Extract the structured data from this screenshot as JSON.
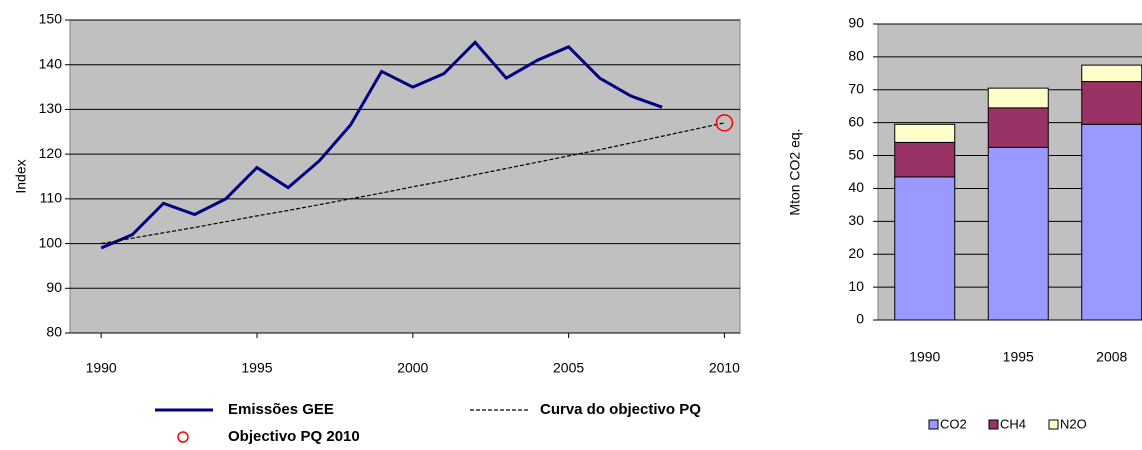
{
  "chart_data": [
    {
      "type": "line",
      "ylabel": "Index",
      "xlim": [
        1989,
        2010.5
      ],
      "xticks": [
        1990,
        1995,
        2000,
        2005,
        2010
      ],
      "ylim": [
        80,
        150
      ],
      "yticks": [
        80,
        90,
        100,
        110,
        120,
        130,
        140,
        150
      ],
      "grid": true,
      "background": "#c0c0c0",
      "legend": "bottom",
      "series": [
        {
          "name": "Emissões GEE",
          "color": "#000080",
          "style": "solid",
          "x": [
            1990,
            1991,
            1992,
            1993,
            1994,
            1995,
            1996,
            1997,
            1998,
            1999,
            2000,
            2001,
            2002,
            2003,
            2004,
            2005,
            2006,
            2007,
            2008
          ],
          "values": [
            99,
            102,
            109,
            106.5,
            110,
            117,
            112.5,
            118.5,
            126.5,
            138.5,
            135,
            138,
            145,
            137,
            141,
            144,
            137,
            133,
            130.5
          ]
        },
        {
          "name": "Curva do objectivo PQ",
          "color": "#000000",
          "style": "dashed",
          "x": [
            1990,
            1991,
            1992,
            1993,
            1994,
            1995,
            1996,
            1997,
            1998,
            1999,
            2000,
            2001,
            2002,
            2003,
            2004,
            2005,
            2006,
            2007,
            2008,
            2009,
            2010
          ],
          "values": [
            100,
            101.2,
            102.4,
            103.6,
            104.9,
            106.2,
            107.4,
            108.7,
            110,
            111.3,
            112.7,
            114,
            115.4,
            116.8,
            118.2,
            119.6,
            121,
            122.5,
            124,
            125.5,
            127
          ]
        },
        {
          "name": "Objectivo PQ 2010",
          "color": "#ff0000",
          "style": "marker",
          "x": [
            2010
          ],
          "values": [
            127
          ]
        }
      ]
    },
    {
      "type": "stacked_bar",
      "ylabel": "Mton CO2 eq.",
      "categories": [
        "1990",
        "1995",
        "2008"
      ],
      "ylim": [
        0,
        90
      ],
      "yticks": [
        0,
        10,
        20,
        30,
        40,
        50,
        60,
        70,
        80,
        90
      ],
      "grid": true,
      "background": "#c0c0c0",
      "legend": "bottom",
      "series": [
        {
          "name": "CO2",
          "color": "#9999ff",
          "values": [
            43.5,
            52.5,
            59.5
          ]
        },
        {
          "name": "CH4",
          "color": "#993366",
          "values": [
            10.5,
            12,
            13
          ]
        },
        {
          "name": "N2O",
          "color": "#ffffcc",
          "values": [
            5.5,
            6,
            5
          ]
        }
      ]
    }
  ]
}
